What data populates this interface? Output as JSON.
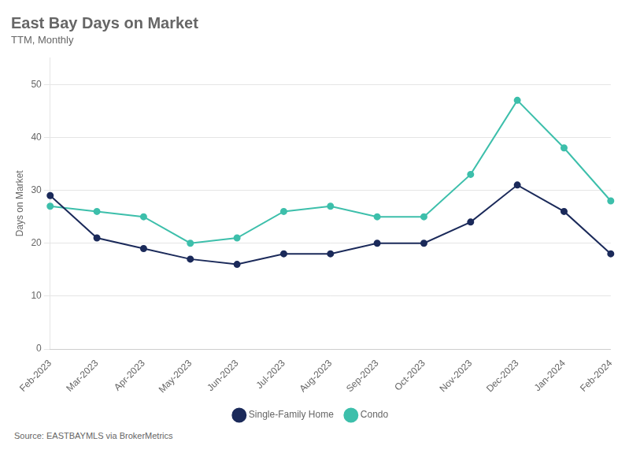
{
  "chart_data": {
    "type": "line",
    "title": "East Bay Days on Market",
    "subtitle": "TTM, Monthly",
    "ylabel": "Days on Market",
    "source": "Source:  EASTBAYMLS via BrokerMetrics",
    "categories": [
      "Feb-2023",
      "Mar-2023",
      "Apr-2023",
      "May-2023",
      "Jun-2023",
      "Jul-2023",
      "Aug-2023",
      "Sep-2023",
      "Oct-2023",
      "Nov-2023",
      "Dec-2023",
      "Jan-2024",
      "Feb-2024"
    ],
    "series": [
      {
        "name": "Single-Family Home",
        "color": "#1b2a5a",
        "marker": "circle",
        "values": [
          29,
          21,
          19,
          17,
          16,
          18,
          18,
          20,
          20,
          24,
          31,
          26,
          18
        ]
      },
      {
        "name": "Condo",
        "color": "#3dbfab",
        "marker": "circle",
        "values": [
          27,
          26,
          25,
          20,
          21,
          26,
          27,
          25,
          25,
          33,
          47,
          38,
          28
        ]
      }
    ],
    "ylim": [
      0,
      55
    ],
    "yticks": [
      0,
      10,
      20,
      30,
      40,
      50
    ],
    "grid": "y",
    "legend": "bottom"
  }
}
